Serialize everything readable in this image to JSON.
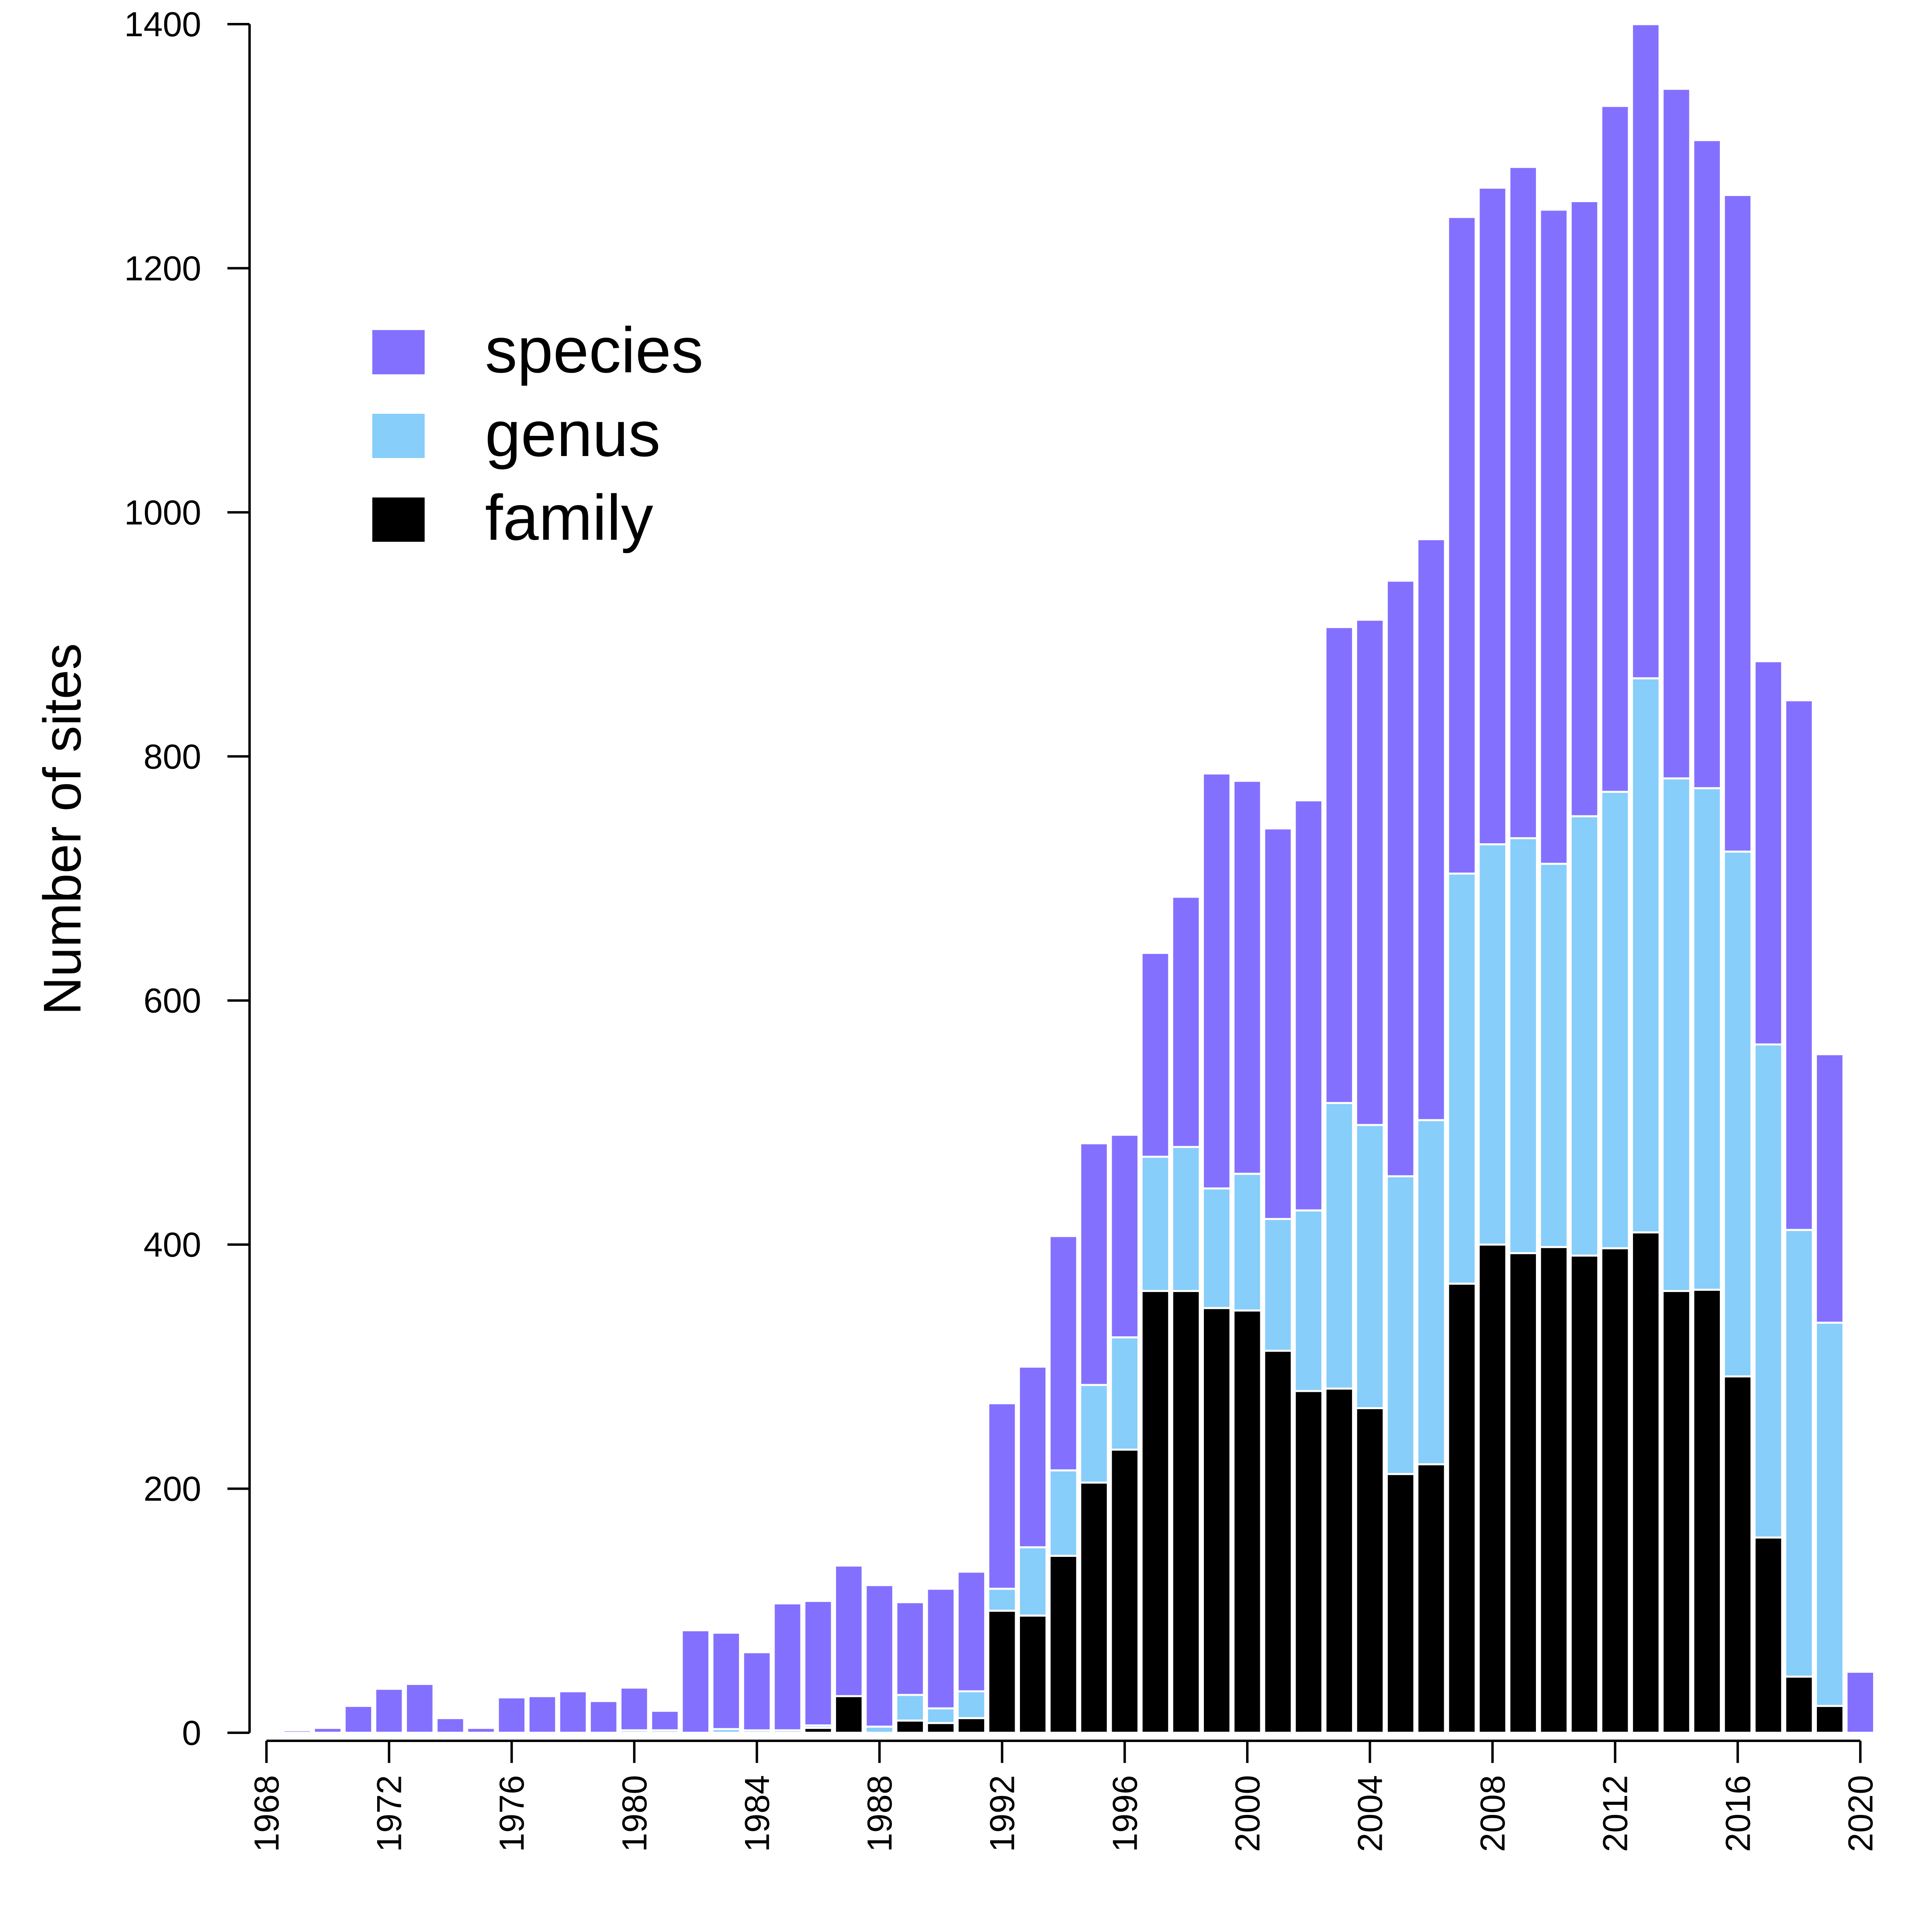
{
  "chart_data": {
    "type": "bar",
    "stacked": true,
    "ylabel": "Number of sites",
    "ylim": [
      0,
      1400
    ],
    "xlim": [
      1968,
      2020
    ],
    "y_ticks": [
      "0",
      "200",
      "400",
      "600",
      "800",
      "1000",
      "1200",
      "1400"
    ],
    "x_ticks": [
      "1968",
      "1972",
      "1976",
      "1980",
      "1984",
      "1988",
      "1992",
      "1996",
      "2000",
      "2004",
      "2008",
      "2012",
      "2016",
      "2020"
    ],
    "grid": false,
    "legend_position": "top-left",
    "years": [
      1969,
      1970,
      1971,
      1972,
      1973,
      1974,
      1975,
      1976,
      1977,
      1978,
      1979,
      1980,
      1981,
      1982,
      1983,
      1984,
      1985,
      1986,
      1987,
      1988,
      1989,
      1990,
      1991,
      1992,
      1993,
      1994,
      1995,
      1996,
      1997,
      1998,
      1999,
      2000,
      2001,
      2002,
      2003,
      2004,
      2005,
      2006,
      2007,
      2008,
      2009,
      2010,
      2011,
      2012,
      2013,
      2014,
      2015,
      2016,
      2017,
      2018,
      2019,
      2020
    ],
    "series": [
      {
        "name": "family",
        "color": "#000000",
        "values": [
          0,
          0,
          0,
          0,
          0,
          0,
          0,
          0,
          0,
          0,
          0,
          0,
          0,
          0,
          0,
          0,
          0,
          4,
          30,
          0,
          10,
          8,
          12,
          100,
          96,
          145,
          205,
          232,
          362,
          362,
          348,
          346,
          313,
          280,
          282,
          266,
          212,
          220,
          368,
          400,
          393,
          398,
          391,
          397,
          410,
          362,
          363,
          292,
          160,
          46,
          22,
          0
        ]
      },
      {
        "name": "genus",
        "color": "#87cefa",
        "values": [
          0,
          0,
          0,
          0,
          0,
          0,
          0,
          0,
          0,
          0,
          0,
          2,
          2,
          0,
          3,
          2,
          2,
          2,
          0,
          5,
          21,
          12,
          22,
          18,
          56,
          70,
          80,
          92,
          110,
          118,
          98,
          112,
          108,
          148,
          234,
          232,
          244,
          282,
          336,
          328,
          340,
          314,
          360,
          374,
          454,
          420,
          411,
          430,
          404,
          366,
          314,
          0
        ]
      },
      {
        "name": "species",
        "color": "#8470ff",
        "values": [
          2,
          4,
          22,
          36,
          40,
          12,
          4,
          29,
          30,
          34,
          26,
          35,
          16,
          84,
          79,
          64,
          104,
          102,
          107,
          116,
          76,
          98,
          98,
          152,
          148,
          192,
          198,
          166,
          167,
          205,
          340,
          322,
          320,
          336,
          390,
          414,
          488,
          476,
          538,
          538,
          550,
          536,
          504,
          562,
          536,
          565,
          531,
          538,
          314,
          434,
          220,
          50
        ]
      }
    ]
  }
}
